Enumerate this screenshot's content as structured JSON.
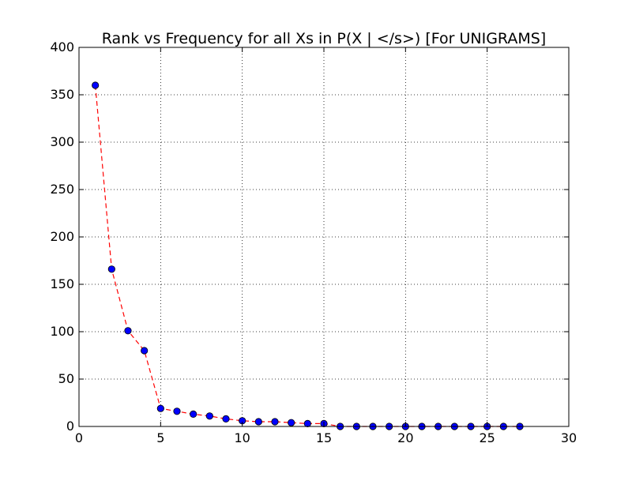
{
  "chart_data": {
    "type": "line",
    "title": "Rank vs Frequency for all Xs in P(X | </s>) [For UNIGRAMS]",
    "xlabel": "",
    "ylabel": "",
    "xlim": [
      0,
      30
    ],
    "ylim": [
      0,
      400
    ],
    "xticks": [
      0,
      5,
      10,
      15,
      20,
      25,
      30
    ],
    "yticks": [
      0,
      50,
      100,
      150,
      200,
      250,
      300,
      350,
      400
    ],
    "xtick_labels": [
      "0",
      "5",
      "10",
      "15",
      "20",
      "25",
      "30"
    ],
    "ytick_labels": [
      "0",
      "50",
      "100",
      "150",
      "200",
      "250",
      "300",
      "350",
      "400"
    ],
    "grid": true,
    "legend": "none",
    "series": [
      {
        "line_color": "#ff0000",
        "line_style": "dashed",
        "marker": "circle",
        "marker_color": "#0000ff",
        "x": [
          1,
          2,
          3,
          4,
          5,
          6,
          7,
          8,
          9,
          10,
          11,
          12,
          13,
          14,
          15,
          16,
          17,
          18,
          19,
          20,
          21,
          22,
          23,
          24,
          25,
          26,
          27
        ],
        "y": [
          360,
          166,
          101,
          80,
          19,
          16,
          13,
          11,
          8,
          6,
          5,
          5,
          4,
          3,
          3,
          0,
          0,
          0,
          0,
          0,
          0,
          0,
          0,
          0,
          0,
          0,
          0
        ]
      }
    ]
  }
}
